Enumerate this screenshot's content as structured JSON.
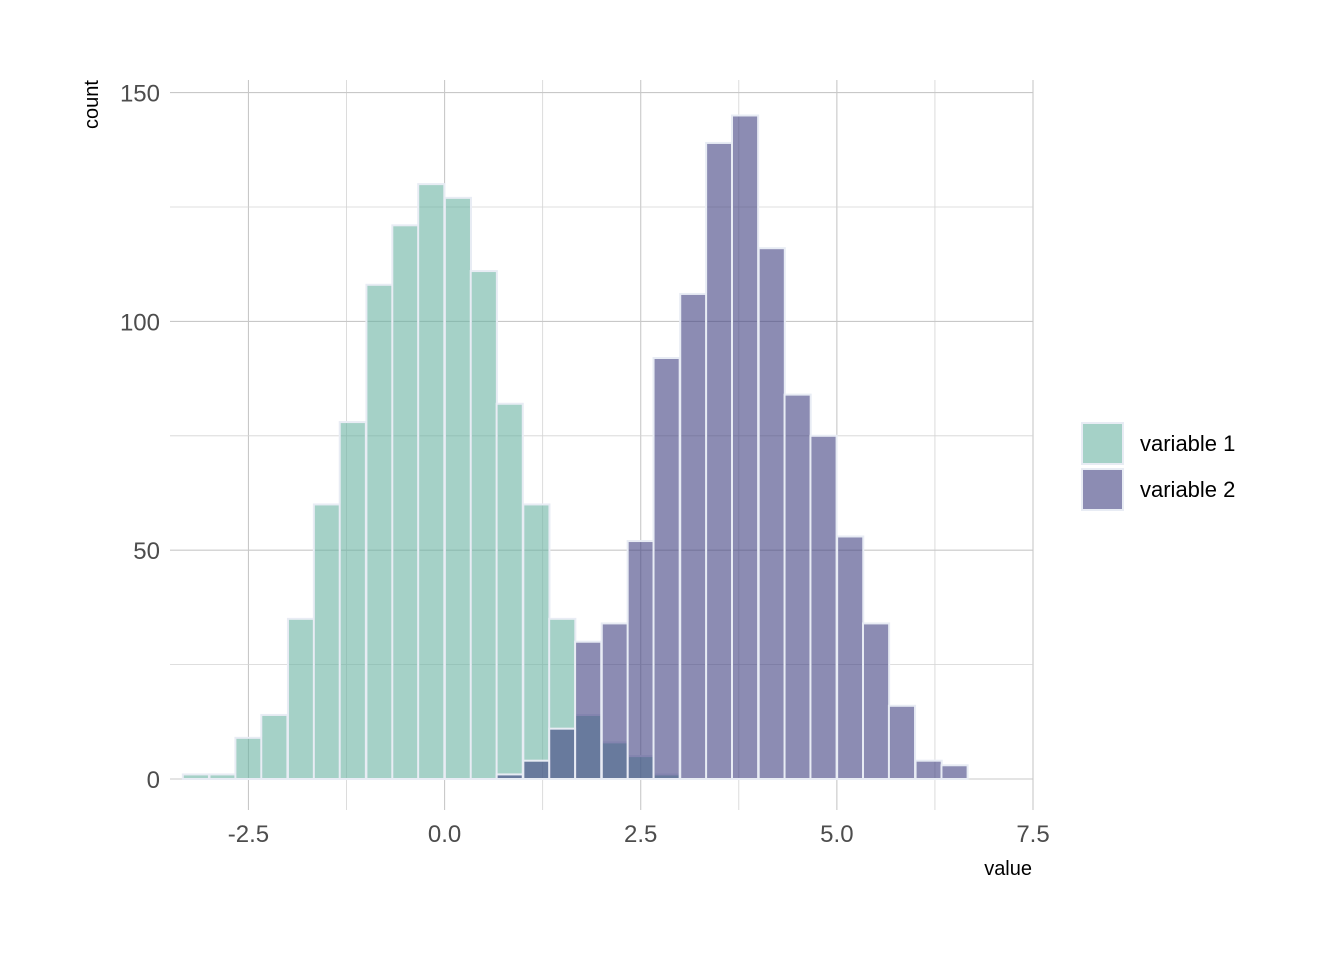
{
  "chart_data": {
    "type": "bar",
    "subtype": "overlapping-histogram",
    "title": "",
    "xlabel": "value",
    "ylabel": "count",
    "xlim": [
      -3.5,
      7.5
    ],
    "ylim": [
      0,
      152
    ],
    "x_ticks": [
      -2.5,
      0.0,
      2.5,
      5.0,
      7.5
    ],
    "x_tick_labels": [
      "-2.5",
      "0.0",
      "2.5",
      "5.0",
      "7.5"
    ],
    "y_ticks": [
      0,
      50,
      100,
      150
    ],
    "y_tick_labels": [
      "0",
      "50",
      "100",
      "150"
    ],
    "grid": true,
    "legend_position": "right",
    "bin_width": 0.333,
    "series": [
      {
        "name": "variable 1",
        "color": "#69b3a2",
        "opacity": 0.6,
        "bins": [
          {
            "x": -3.17,
            "count": 1
          },
          {
            "x": -2.83,
            "count": 1
          },
          {
            "x": -2.5,
            "count": 9
          },
          {
            "x": -2.17,
            "count": 14
          },
          {
            "x": -1.83,
            "count": 35
          },
          {
            "x": -1.5,
            "count": 60
          },
          {
            "x": -1.17,
            "count": 78
          },
          {
            "x": -0.83,
            "count": 108
          },
          {
            "x": -0.5,
            "count": 121
          },
          {
            "x": -0.17,
            "count": 130
          },
          {
            "x": 0.17,
            "count": 127
          },
          {
            "x": 0.5,
            "count": 111
          },
          {
            "x": 0.83,
            "count": 82
          },
          {
            "x": 1.17,
            "count": 60
          },
          {
            "x": 1.5,
            "count": 35
          },
          {
            "x": 1.83,
            "count": 14
          },
          {
            "x": 2.17,
            "count": 8
          },
          {
            "x": 2.5,
            "count": 5
          },
          {
            "x": 2.83,
            "count": 1
          }
        ]
      },
      {
        "name": "variable 2",
        "color": "#404080",
        "opacity": 0.6,
        "bins": [
          {
            "x": 0.83,
            "count": 1
          },
          {
            "x": 1.17,
            "count": 4
          },
          {
            "x": 1.5,
            "count": 11
          },
          {
            "x": 1.83,
            "count": 30
          },
          {
            "x": 2.17,
            "count": 34
          },
          {
            "x": 2.5,
            "count": 52
          },
          {
            "x": 2.83,
            "count": 92
          },
          {
            "x": 3.17,
            "count": 106
          },
          {
            "x": 3.5,
            "count": 139
          },
          {
            "x": 3.83,
            "count": 145
          },
          {
            "x": 4.17,
            "count": 116
          },
          {
            "x": 4.5,
            "count": 84
          },
          {
            "x": 4.83,
            "count": 75
          },
          {
            "x": 5.17,
            "count": 53
          },
          {
            "x": 5.5,
            "count": 34
          },
          {
            "x": 5.83,
            "count": 16
          },
          {
            "x": 6.17,
            "count": 4
          },
          {
            "x": 6.5,
            "count": 3
          }
        ]
      }
    ]
  }
}
